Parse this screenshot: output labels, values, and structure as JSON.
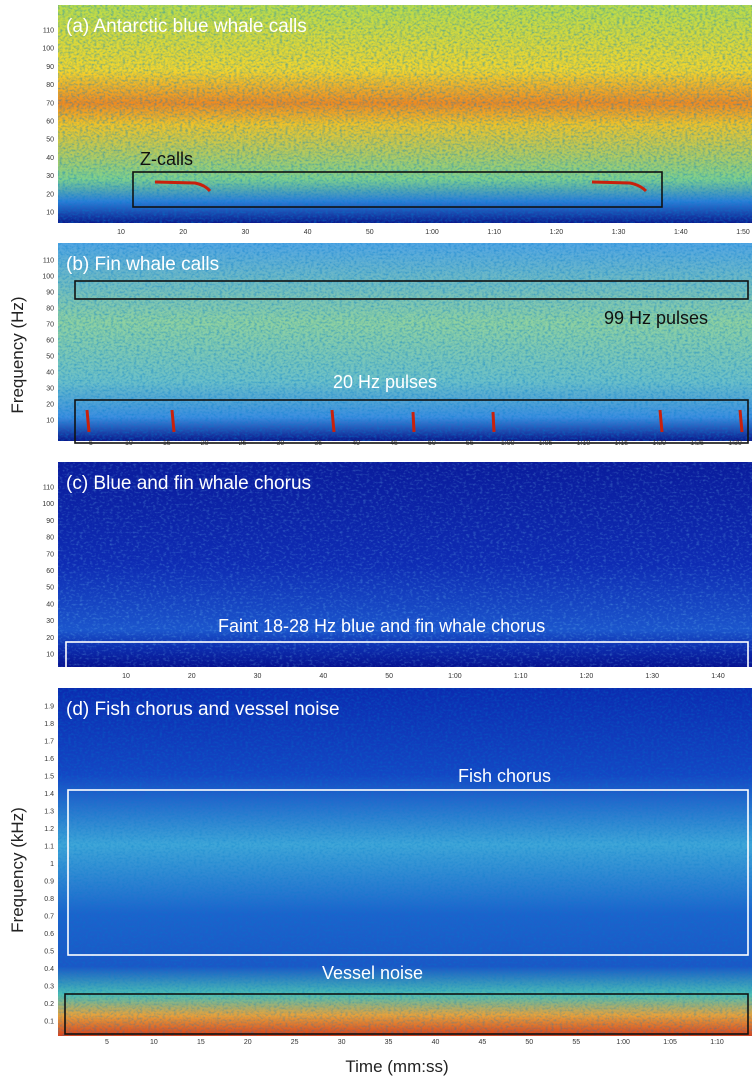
{
  "y_label_hz": "Frequency (Hz)",
  "y_label_khz": "Frequency (kHz)",
  "x_label": "Time (mm:ss)",
  "panels": [
    {
      "title": "(a) Antarctic blue whale calls",
      "yticks": [
        10,
        20,
        30,
        40,
        50,
        60,
        70,
        80,
        90,
        100,
        110
      ],
      "xticks": [
        10,
        20,
        30,
        40,
        50,
        "1:00",
        "1:10",
        "1:20",
        "1:30",
        "1:40",
        "1:50"
      ],
      "annotations": [
        "Z-calls"
      ]
    },
    {
      "title": "(b) Fin whale calls",
      "yticks": [
        10,
        20,
        30,
        40,
        50,
        60,
        70,
        80,
        90,
        100,
        110
      ],
      "xticks": [
        5,
        10,
        15,
        20,
        25,
        30,
        35,
        40,
        45,
        50,
        55,
        "1:00",
        "1:05",
        "1:10",
        "1:15",
        "1:20",
        "1:25",
        "1:30"
      ],
      "annotations": [
        "99 Hz pulses",
        "20 Hz pulses"
      ]
    },
    {
      "title": "(c) Blue and fin whale chorus",
      "yticks": [
        10,
        20,
        30,
        40,
        50,
        60,
        70,
        80,
        90,
        100,
        110
      ],
      "xticks": [
        10,
        20,
        30,
        40,
        50,
        "1:00",
        "1:10",
        "1:20",
        "1:30",
        "1:40"
      ],
      "annotations": [
        "Faint 18-28 Hz blue and fin whale chorus"
      ]
    },
    {
      "title": "(d) Fish chorus and vessel noise",
      "yticks": [
        0.1,
        0.2,
        0.3,
        0.4,
        0.5,
        0.6,
        0.7,
        0.8,
        0.9,
        1,
        1.1,
        1.2,
        1.3,
        1.4,
        1.5,
        1.6,
        1.7,
        1.8,
        1.9
      ],
      "xticks": [
        5,
        10,
        15,
        20,
        25,
        30,
        35,
        40,
        45,
        50,
        55,
        "1:00",
        "1:05",
        "1:10"
      ],
      "annotations": [
        "Fish chorus",
        "Vessel noise"
      ]
    }
  ]
}
